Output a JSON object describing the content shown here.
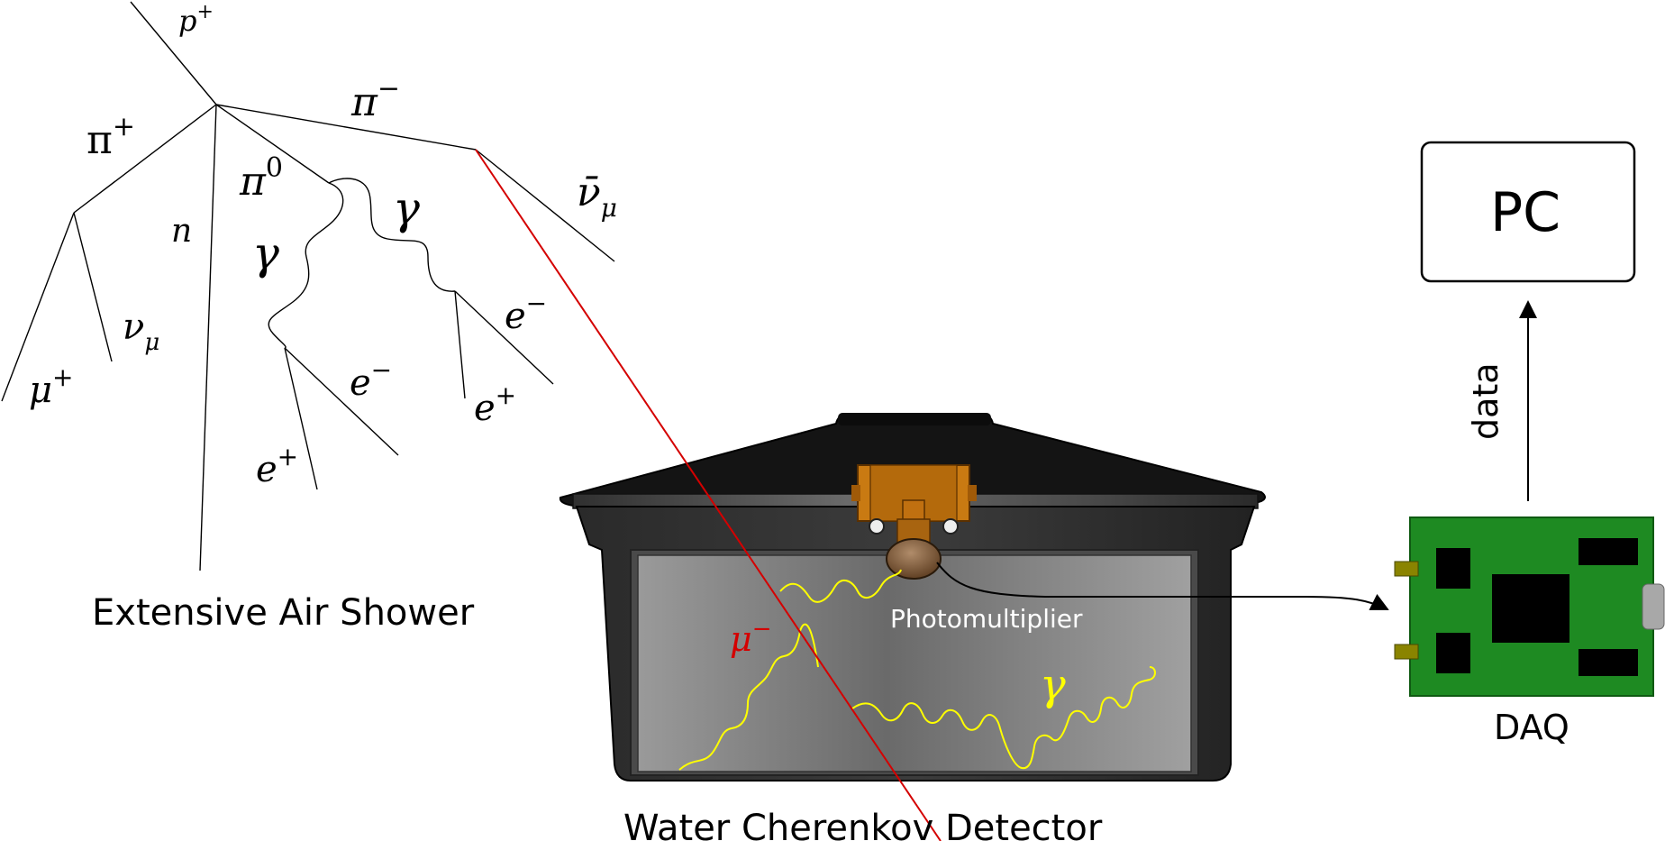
{
  "shower": {
    "caption": "Extensive Air Shower",
    "particles": {
      "proton": {
        "base": "p",
        "sup": "+"
      },
      "pi_plus": {
        "base": "π",
        "sup": "+"
      },
      "pi_minus": {
        "base": "π",
        "sup": "−"
      },
      "pi_zero": {
        "base": "π",
        "sup": "0"
      },
      "neutron": {
        "base": "n"
      },
      "gamma_left": {
        "base": "γ"
      },
      "gamma_right": {
        "base": "γ"
      },
      "antineutrino_mu": {
        "base": "ν̄",
        "sub": "μ"
      },
      "neutrino_mu": {
        "base": "ν",
        "sub": "μ"
      },
      "muon_plus": {
        "base": "μ",
        "sup": "+"
      },
      "electron_left": {
        "base": "e",
        "sup": "−"
      },
      "positron_left": {
        "base": "e",
        "sup": "+"
      },
      "electron_right": {
        "base": "e",
        "sup": "−"
      },
      "positron_right": {
        "base": "e",
        "sup": "+"
      }
    }
  },
  "detector": {
    "caption": "Water Cherenkov Detector",
    "pmt_label": "Photomultiplier",
    "muon_label": {
      "base": "μ",
      "sup": "−"
    },
    "photon_label": {
      "base": "γ"
    }
  },
  "daq": {
    "label": "DAQ"
  },
  "pc": {
    "label": "PC"
  },
  "data_arrow": {
    "label": "data"
  },
  "colors": {
    "muon_track": "#d40000",
    "cherenkov_photon": "#ffff00",
    "board_green": "#1e8a22",
    "pmt_housing": "#c87810"
  }
}
